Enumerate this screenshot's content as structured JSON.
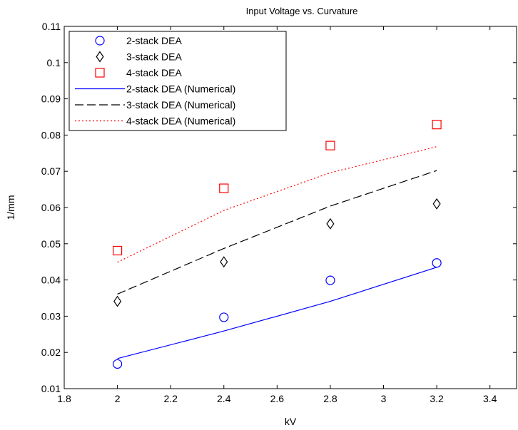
{
  "chart_data": {
    "type": "line",
    "title": "Input Voltage vs. Curvature",
    "xlabel": "kV",
    "ylabel": "1/mm",
    "xlim": [
      1.8,
      3.5
    ],
    "ylim": [
      0.01,
      0.11
    ],
    "xticks": [
      1.8,
      2,
      2.2,
      2.4,
      2.6,
      2.8,
      3,
      3.2,
      3.4
    ],
    "xtick_labels": [
      "1.8",
      "2",
      "2.2",
      "2.4",
      "2.6",
      "2.8",
      "3",
      "3.2",
      "3.4"
    ],
    "yticks": [
      0.01,
      0.02,
      0.03,
      0.04,
      0.05,
      0.06,
      0.07,
      0.08,
      0.09,
      0.1,
      0.11
    ],
    "ytick_labels": [
      "0.01",
      "0.02",
      "0.03",
      "0.04",
      "0.05",
      "0.06",
      "0.07",
      "0.08",
      "0.09",
      "0.1",
      "0.11"
    ],
    "grid": false,
    "legend_position": "top-left",
    "series": [
      {
        "name": "2-stack DEA",
        "kind": "marker",
        "marker": "circle",
        "color": "#0000ff",
        "x": [
          2.0,
          2.4,
          2.8,
          3.2
        ],
        "y": [
          0.0168,
          0.0297,
          0.0399,
          0.0447
        ]
      },
      {
        "name": "3-stack DEA",
        "kind": "marker",
        "marker": "diamond",
        "color": "#000000",
        "x": [
          2.0,
          2.4,
          2.8,
          3.2
        ],
        "y": [
          0.0341,
          0.045,
          0.0555,
          0.061
        ]
      },
      {
        "name": "4-stack DEA",
        "kind": "marker",
        "marker": "square",
        "color": "#ff0000",
        "x": [
          2.0,
          2.4,
          2.8,
          3.2
        ],
        "y": [
          0.0481,
          0.0653,
          0.0771,
          0.0829
        ]
      },
      {
        "name": "2-stack DEA (Numerical)",
        "kind": "line",
        "dash": "solid",
        "color": "#0000ff",
        "x": [
          2.0,
          2.4,
          2.8,
          3.2
        ],
        "y": [
          0.0183,
          0.0259,
          0.0341,
          0.0435
        ]
      },
      {
        "name": "3-stack DEA (Numerical)",
        "kind": "line",
        "dash": "dashed",
        "color": "#000000",
        "x": [
          2.0,
          2.4,
          2.8,
          3.2
        ],
        "y": [
          0.0361,
          0.0487,
          0.0604,
          0.0702
        ]
      },
      {
        "name": "4-stack DEA (Numerical)",
        "kind": "line",
        "dash": "dotted",
        "color": "#ff0000",
        "x": [
          2.0,
          2.4,
          2.8,
          3.2
        ],
        "y": [
          0.0449,
          0.0592,
          0.0696,
          0.0768
        ]
      }
    ]
  }
}
